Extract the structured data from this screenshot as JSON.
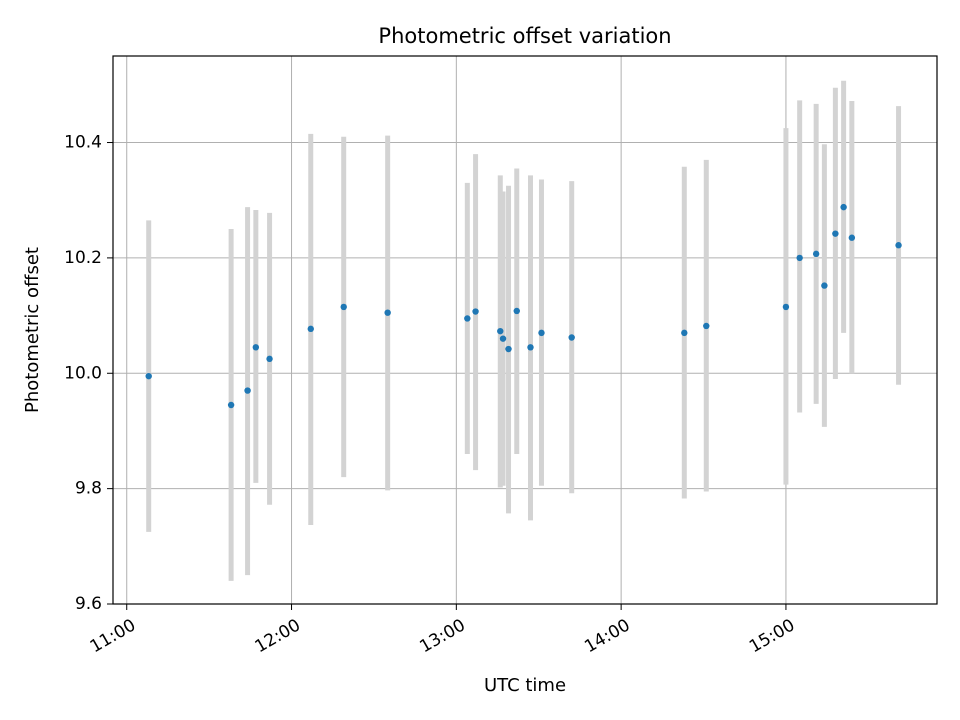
{
  "chart_data": {
    "type": "scatter",
    "title": "Photometric offset variation",
    "xlabel": "UTC time",
    "ylabel": "Photometric offset",
    "x_unit": "UTC time (HH:MM)",
    "xlim": [
      "10:55",
      "15:55"
    ],
    "ylim": [
      9.6,
      10.55
    ],
    "xticks": [
      "11:00",
      "12:00",
      "13:00",
      "14:00",
      "15:00"
    ],
    "yticks": [
      "9.6",
      "9.8",
      "10.0",
      "10.2",
      "10.4"
    ],
    "grid": true,
    "marker_color": "#1f77b4",
    "errorbar_color": "#d3d3d3",
    "points": [
      {
        "x": "11:08",
        "y": 9.995,
        "lo": 9.725,
        "hi": 10.265
      },
      {
        "x": "11:38",
        "y": 9.945,
        "lo": 9.64,
        "hi": 10.25
      },
      {
        "x": "11:44",
        "y": 9.97,
        "lo": 9.65,
        "hi": 10.288
      },
      {
        "x": "11:47",
        "y": 10.045,
        "lo": 9.81,
        "hi": 10.283
      },
      {
        "x": "11:52",
        "y": 10.025,
        "lo": 9.772,
        "hi": 10.278
      },
      {
        "x": "12:07",
        "y": 10.077,
        "lo": 9.737,
        "hi": 10.415
      },
      {
        "x": "12:19",
        "y": 10.115,
        "lo": 9.82,
        "hi": 10.41
      },
      {
        "x": "12:35",
        "y": 10.105,
        "lo": 9.797,
        "hi": 10.412
      },
      {
        "x": "13:04",
        "y": 10.095,
        "lo": 9.86,
        "hi": 10.33
      },
      {
        "x": "13:07",
        "y": 10.107,
        "lo": 9.832,
        "hi": 10.38
      },
      {
        "x": "13:16",
        "y": 10.073,
        "lo": 9.802,
        "hi": 10.343
      },
      {
        "x": "13:17",
        "y": 10.06,
        "lo": 9.805,
        "hi": 10.315
      },
      {
        "x": "13:19",
        "y": 10.042,
        "lo": 9.757,
        "hi": 10.325
      },
      {
        "x": "13:22",
        "y": 10.108,
        "lo": 9.86,
        "hi": 10.355
      },
      {
        "x": "13:27",
        "y": 10.045,
        "lo": 9.745,
        "hi": 10.343
      },
      {
        "x": "13:31",
        "y": 10.07,
        "lo": 9.805,
        "hi": 10.336
      },
      {
        "x": "13:42",
        "y": 10.062,
        "lo": 9.792,
        "hi": 10.333
      },
      {
        "x": "14:23",
        "y": 10.07,
        "lo": 9.783,
        "hi": 10.358
      },
      {
        "x": "14:31",
        "y": 10.082,
        "lo": 9.795,
        "hi": 10.37
      },
      {
        "x": "15:00",
        "y": 10.115,
        "lo": 9.807,
        "hi": 10.425
      },
      {
        "x": "15:05",
        "y": 10.2,
        "lo": 9.932,
        "hi": 10.473
      },
      {
        "x": "15:11",
        "y": 10.207,
        "lo": 9.947,
        "hi": 10.467
      },
      {
        "x": "15:14",
        "y": 10.152,
        "lo": 9.907,
        "hi": 10.397
      },
      {
        "x": "15:18",
        "y": 10.242,
        "lo": 9.99,
        "hi": 10.495
      },
      {
        "x": "15:21",
        "y": 10.288,
        "lo": 10.07,
        "hi": 10.507
      },
      {
        "x": "15:24",
        "y": 10.235,
        "lo": 10.0,
        "hi": 10.472
      },
      {
        "x": "15:41",
        "y": 10.222,
        "lo": 9.98,
        "hi": 10.463
      }
    ]
  }
}
